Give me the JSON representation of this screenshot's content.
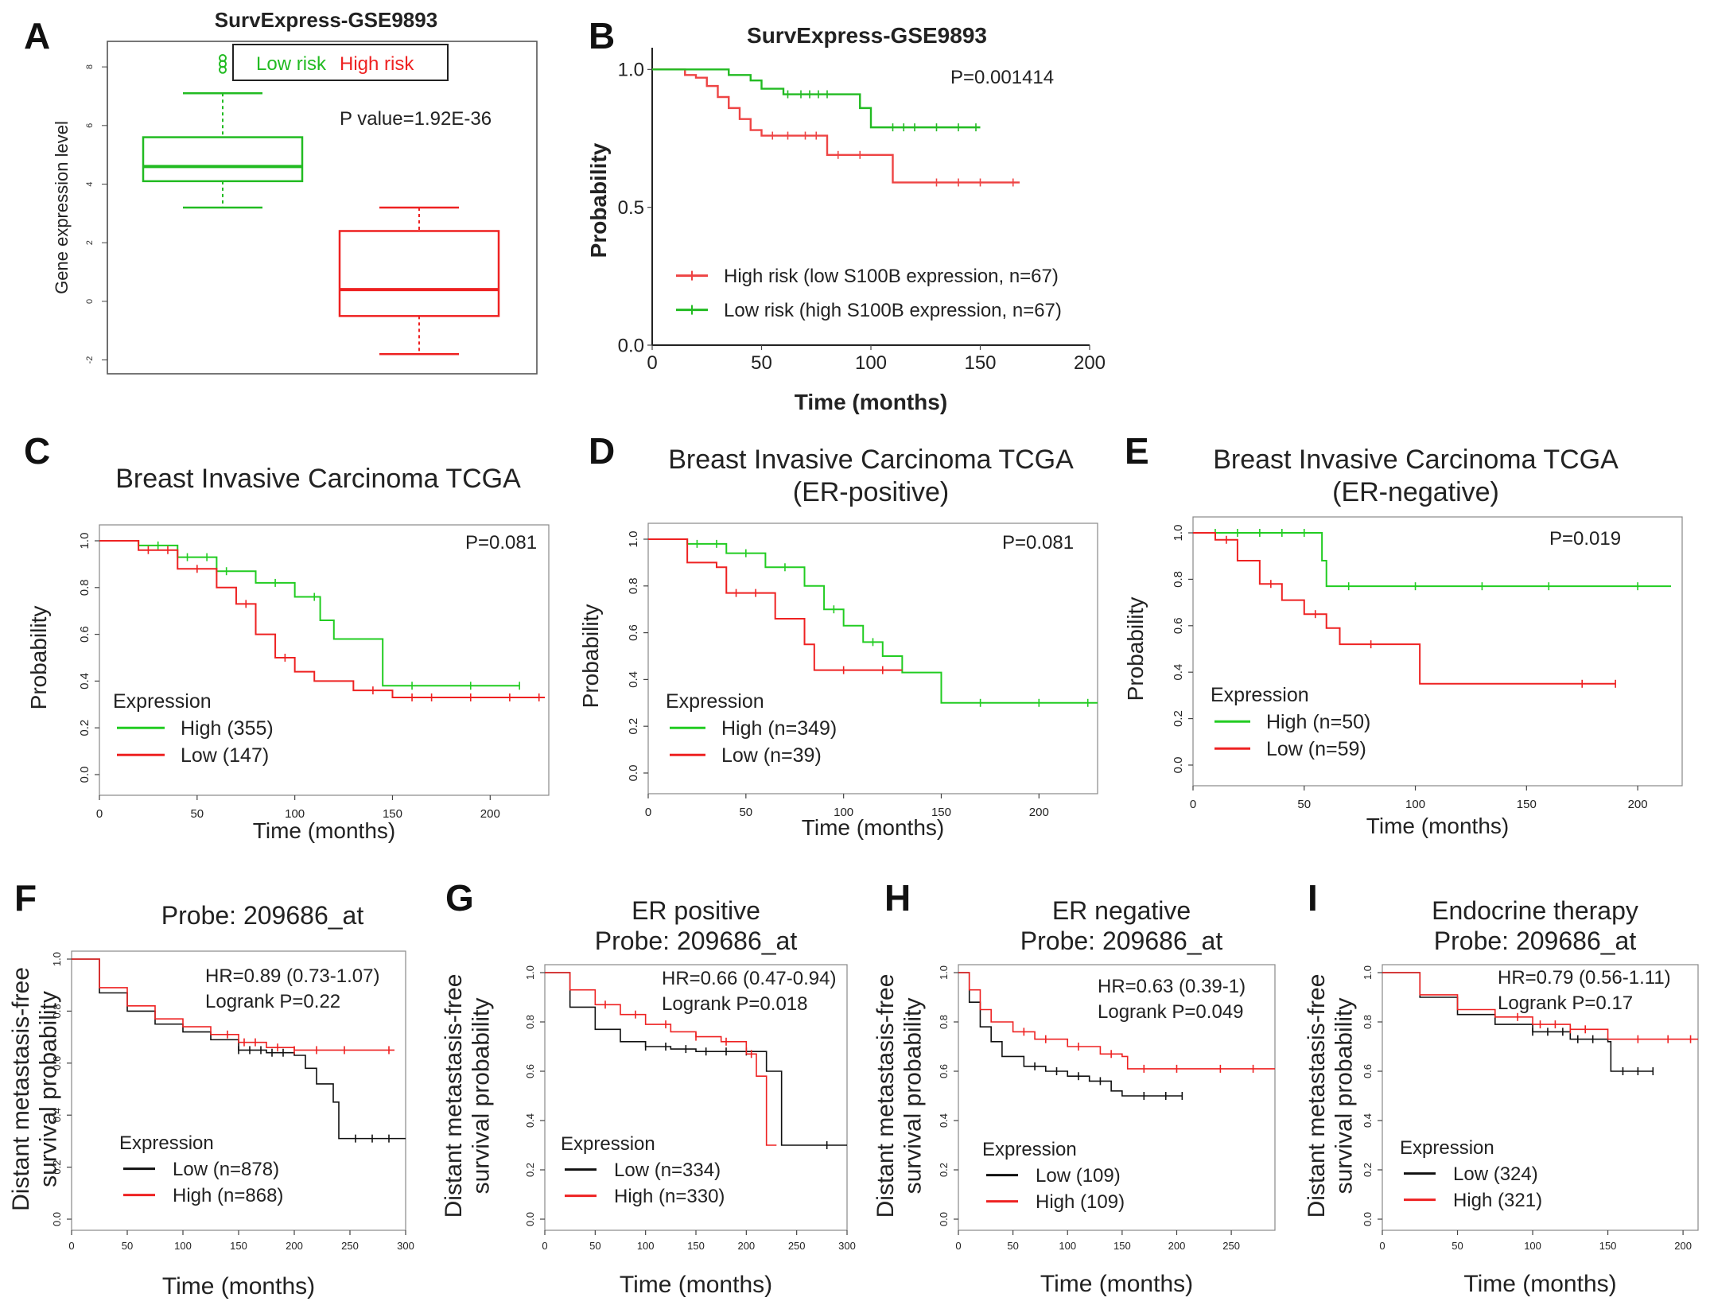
{
  "chart_data": [
    {
      "id": "A",
      "type": "box",
      "panel_label": "A",
      "title": "SurvExpress-GSE9893",
      "ylabel": "Gene expression level",
      "xlabel": "",
      "ylim": [
        -2.2,
        8.6
      ],
      "yticks": [
        "-2",
        "0",
        "2",
        "4",
        "6",
        "8"
      ],
      "ytick_values": [
        -2,
        0,
        2,
        4,
        6,
        8
      ],
      "legend": [
        {
          "name": "Low risk",
          "color": "#22bb22"
        },
        {
          "name": "High risk",
          "color": "#ee2222"
        }
      ],
      "annotation": "P value=1.92E-36",
      "boxes": [
        {
          "name": "Low risk",
          "color": "#22bb22",
          "whisker_low": 3.2,
          "q1": 4.1,
          "median": 4.6,
          "q3": 5.6,
          "whisker_high": 7.1,
          "outliers": [
            7.9,
            8.1,
            8.3
          ]
        },
        {
          "name": "High risk",
          "color": "#ee2222",
          "whisker_low": -1.8,
          "q1": -0.5,
          "median": 0.4,
          "q3": 2.4,
          "whisker_high": 3.2,
          "outliers": []
        }
      ]
    },
    {
      "id": "B",
      "type": "line",
      "panel_label": "B",
      "title": "SurvExpress-GSE9893",
      "xlabel": "Time (months)",
      "ylabel": "Probability",
      "xlim": [
        0,
        200
      ],
      "ylim": [
        0,
        1.05
      ],
      "xticks": [
        "0",
        "50",
        "100",
        "150",
        "200"
      ],
      "xtick_values": [
        0,
        50,
        100,
        150,
        200
      ],
      "yticks": [
        "0.0",
        "0.5",
        "1.0"
      ],
      "ytick_values": [
        0,
        0.5,
        1.0
      ],
      "annotation": "P=0.001414",
      "legend_title": "",
      "series": [
        {
          "name": "High risk (low S100B expression, n=67)",
          "color": "#ee4444",
          "x": [
            0,
            10,
            15,
            20,
            25,
            30,
            35,
            40,
            45,
            50,
            60,
            70,
            80,
            100,
            110,
            168
          ],
          "y": [
            1.0,
            1.0,
            0.98,
            0.97,
            0.94,
            0.9,
            0.86,
            0.82,
            0.78,
            0.76,
            0.76,
            0.76,
            0.69,
            0.69,
            0.59,
            0.59
          ],
          "censor_x": [
            55,
            62,
            70,
            75,
            85,
            95,
            130,
            140,
            150,
            165
          ]
        },
        {
          "name": "Low risk (high S100B expression, n=67)",
          "color": "#22bb22",
          "x": [
            0,
            30,
            35,
            45,
            50,
            60,
            70,
            95,
            100,
            150
          ],
          "y": [
            1.0,
            1.0,
            0.98,
            0.96,
            0.93,
            0.91,
            0.91,
            0.86,
            0.79,
            0.79
          ],
          "censor_x": [
            62,
            68,
            72,
            76,
            80,
            110,
            115,
            120,
            130,
            140,
            148
          ]
        }
      ]
    },
    {
      "id": "C",
      "type": "line",
      "panel_label": "C",
      "title": "Breast Invasive Carcinoma TCGA",
      "xlabel": "Time (months)",
      "ylabel": "Probability",
      "xlim": [
        0,
        230
      ],
      "ylim": [
        0,
        1.0
      ],
      "xticks": [
        "0",
        "50",
        "100",
        "150",
        "200"
      ],
      "xtick_values": [
        0,
        50,
        100,
        150,
        200
      ],
      "yticks": [
        "0.0",
        "0.2",
        "0.4",
        "0.6",
        "0.8",
        "1.0"
      ],
      "ytick_values": [
        0,
        0.2,
        0.4,
        0.6,
        0.8,
        1.0
      ],
      "annotation": "P=0.081",
      "legend_title": "Expression",
      "series": [
        {
          "name": "High (355)",
          "color": "#22cc22",
          "x": [
            0,
            20,
            40,
            60,
            80,
            100,
            113,
            120,
            140,
            145,
            215
          ],
          "y": [
            1.0,
            0.98,
            0.93,
            0.87,
            0.82,
            0.76,
            0.66,
            0.58,
            0.58,
            0.38,
            0.38
          ],
          "censor_x": [
            30,
            45,
            55,
            65,
            90,
            110,
            160,
            190,
            215
          ]
        },
        {
          "name": "Low (147)",
          "color": "#ee2222",
          "x": [
            0,
            20,
            40,
            60,
            70,
            80,
            90,
            100,
            110,
            130,
            150,
            228
          ],
          "y": [
            1.0,
            0.96,
            0.88,
            0.8,
            0.73,
            0.6,
            0.5,
            0.44,
            0.4,
            0.36,
            0.33,
            0.33
          ],
          "censor_x": [
            25,
            35,
            50,
            75,
            95,
            140,
            160,
            170,
            190,
            210,
            225
          ]
        }
      ]
    },
    {
      "id": "D",
      "type": "line",
      "panel_label": "D",
      "title": "Breast Invasive Carcinoma TCGA\n(ER-positive)",
      "xlabel": "Time (months)",
      "ylabel": "Probability",
      "xlim": [
        0,
        230
      ],
      "ylim": [
        0,
        1.0
      ],
      "xticks": [
        "0",
        "50",
        "100",
        "150",
        "200"
      ],
      "xtick_values": [
        0,
        50,
        100,
        150,
        200
      ],
      "yticks": [
        "0.0",
        "0.2",
        "0.4",
        "0.6",
        "0.8",
        "1.0"
      ],
      "ytick_values": [
        0,
        0.2,
        0.4,
        0.6,
        0.8,
        1.0
      ],
      "annotation": "P=0.081",
      "legend_title": "Expression",
      "series": [
        {
          "name": "High (n=349)",
          "color": "#22cc22",
          "x": [
            0,
            20,
            40,
            60,
            80,
            90,
            100,
            110,
            120,
            130,
            150,
            230
          ],
          "y": [
            1.0,
            0.98,
            0.94,
            0.88,
            0.8,
            0.7,
            0.63,
            0.56,
            0.5,
            0.43,
            0.3,
            0.3
          ],
          "censor_x": [
            25,
            35,
            50,
            70,
            95,
            115,
            170,
            200,
            225
          ]
        },
        {
          "name": "Low (n=39)",
          "color": "#ee2222",
          "x": [
            0,
            20,
            35,
            40,
            65,
            80,
            85,
            130
          ],
          "y": [
            1.0,
            0.9,
            0.88,
            0.77,
            0.66,
            0.55,
            0.44,
            0.44
          ],
          "censor_x": [
            45,
            55,
            100,
            120
          ]
        }
      ]
    },
    {
      "id": "E",
      "type": "line",
      "panel_label": "E",
      "title": "Breast Invasive Carcinoma TCGA\n(ER-negative)",
      "xlabel": "Time (months)",
      "ylabel": "Probability",
      "xlim": [
        0,
        220
      ],
      "ylim": [
        0,
        1.0
      ],
      "xticks": [
        "0",
        "50",
        "100",
        "150",
        "200"
      ],
      "xtick_values": [
        0,
        50,
        100,
        150,
        200
      ],
      "yticks": [
        "0.0",
        "0.2",
        "0.4",
        "0.6",
        "0.8",
        "1.0"
      ],
      "ytick_values": [
        0,
        0.2,
        0.4,
        0.6,
        0.8,
        1.0
      ],
      "annotation": "P=0.019",
      "legend_title": "Expression",
      "series": [
        {
          "name": "High (n=50)",
          "color": "#22cc22",
          "x": [
            0,
            55,
            58,
            60,
            215
          ],
          "y": [
            1.0,
            1.0,
            0.88,
            0.77,
            0.77
          ],
          "censor_x": [
            10,
            20,
            30,
            40,
            50,
            70,
            100,
            130,
            160,
            200
          ]
        },
        {
          "name": "Low (n=59)",
          "color": "#ee2222",
          "x": [
            0,
            10,
            20,
            30,
            40,
            50,
            60,
            66,
            100,
            102,
            190
          ],
          "y": [
            1.0,
            0.97,
            0.88,
            0.78,
            0.71,
            0.65,
            0.59,
            0.52,
            0.52,
            0.35,
            0.35
          ],
          "censor_x": [
            15,
            35,
            55,
            80,
            175,
            190
          ]
        }
      ]
    },
    {
      "id": "F",
      "type": "line",
      "panel_label": "F",
      "title": "Probe: 209686_at",
      "xlabel": "Time (months)",
      "ylabel": "Distant metastasis-free\nsurvival probability",
      "xlim": [
        0,
        300
      ],
      "ylim": [
        0,
        1.0
      ],
      "xticks": [
        "0",
        "50",
        "100",
        "150",
        "200",
        "250",
        "300"
      ],
      "xtick_values": [
        0,
        50,
        100,
        150,
        200,
        250,
        300
      ],
      "yticks": [
        "0.0",
        "0.2",
        "0.4",
        "0.6",
        "0.8",
        "1.0"
      ],
      "ytick_values": [
        0,
        0.2,
        0.4,
        0.6,
        0.8,
        1.0
      ],
      "annotation": "HR=0.89 (0.73-1.07)\nLogrank  P=0.22",
      "legend_title": "Expression",
      "series": [
        {
          "name": "Low (n=878)",
          "color": "#111111",
          "x": [
            0,
            25,
            50,
            75,
            100,
            125,
            150,
            175,
            200,
            210,
            220,
            235,
            240,
            300
          ],
          "y": [
            1.0,
            0.87,
            0.8,
            0.75,
            0.72,
            0.69,
            0.65,
            0.64,
            0.63,
            0.58,
            0.52,
            0.45,
            0.31,
            0.31
          ],
          "censor_x": [
            150,
            160,
            170,
            180,
            190,
            255,
            270,
            285
          ]
        },
        {
          "name": "High (n=868)",
          "color": "#ee2222",
          "x": [
            0,
            25,
            50,
            75,
            100,
            125,
            150,
            175,
            200,
            230,
            290
          ],
          "y": [
            1.0,
            0.89,
            0.82,
            0.77,
            0.74,
            0.71,
            0.68,
            0.66,
            0.65,
            0.65,
            0.65
          ],
          "censor_x": [
            140,
            155,
            165,
            185,
            200,
            220,
            245,
            285
          ]
        }
      ]
    },
    {
      "id": "G",
      "type": "line",
      "panel_label": "G",
      "title": "ER positive\nProbe: 209686_at",
      "xlabel": "Time (months)",
      "ylabel": "Distant metastasis-free\nsurvival probability",
      "xlim": [
        0,
        300
      ],
      "ylim": [
        0,
        1.0
      ],
      "xticks": [
        "0",
        "50",
        "100",
        "150",
        "200",
        "250",
        "300"
      ],
      "xtick_values": [
        0,
        50,
        100,
        150,
        200,
        250,
        300
      ],
      "yticks": [
        "0.0",
        "0.2",
        "0.4",
        "0.6",
        "0.8",
        "1.0"
      ],
      "ytick_values": [
        0,
        0.2,
        0.4,
        0.6,
        0.8,
        1.0
      ],
      "annotation": "HR=0.66 (0.47-0.94)\nLogrank  P=0.018",
      "legend_title": "Expression",
      "series": [
        {
          "name": "Low (n=334)",
          "color": "#111111",
          "x": [
            0,
            25,
            50,
            75,
            100,
            125,
            150,
            175,
            200,
            220,
            235,
            240,
            300
          ],
          "y": [
            1.0,
            0.86,
            0.77,
            0.72,
            0.7,
            0.69,
            0.68,
            0.68,
            0.68,
            0.6,
            0.3,
            0.3,
            0.3
          ],
          "censor_x": [
            100,
            120,
            140,
            160,
            180,
            200,
            280
          ]
        },
        {
          "name": "High (n=330)",
          "color": "#ee2222",
          "x": [
            0,
            25,
            50,
            75,
            100,
            125,
            150,
            175,
            200,
            210,
            220,
            230
          ],
          "y": [
            1.0,
            0.93,
            0.87,
            0.83,
            0.79,
            0.76,
            0.74,
            0.72,
            0.67,
            0.58,
            0.3,
            0.3
          ],
          "censor_x": [
            60,
            90,
            120,
            150,
            180,
            205
          ]
        }
      ]
    },
    {
      "id": "H",
      "type": "line",
      "panel_label": "H",
      "title": "ER negative\nProbe: 209686_at",
      "xlabel": "Time (months)",
      "ylabel": "Distant metastasis-free\nsurvival probability",
      "xlim": [
        0,
        290
      ],
      "ylim": [
        0,
        1.0
      ],
      "xticks": [
        "0",
        "50",
        "100",
        "150",
        "200",
        "250"
      ],
      "xtick_values": [
        0,
        50,
        100,
        150,
        200,
        250
      ],
      "yticks": [
        "0.0",
        "0.2",
        "0.4",
        "0.6",
        "0.8",
        "1.0"
      ],
      "ytick_values": [
        0,
        0.2,
        0.4,
        0.6,
        0.8,
        1.0
      ],
      "annotation": "HR=0.63 (0.39-1)\nLogrank  P=0.049",
      "legend_title": "Expression",
      "series": [
        {
          "name": "Low (109)",
          "color": "#111111",
          "x": [
            0,
            10,
            20,
            30,
            40,
            60,
            80,
            100,
            120,
            140,
            150,
            160,
            205
          ],
          "y": [
            1.0,
            0.88,
            0.78,
            0.72,
            0.66,
            0.62,
            0.6,
            0.58,
            0.56,
            0.52,
            0.5,
            0.5,
            0.5
          ],
          "censor_x": [
            70,
            90,
            110,
            130,
            170,
            190,
            205
          ]
        },
        {
          "name": "High (109)",
          "color": "#ee2222",
          "x": [
            0,
            10,
            20,
            30,
            50,
            70,
            100,
            130,
            150,
            155,
            290
          ],
          "y": [
            1.0,
            0.93,
            0.85,
            0.8,
            0.76,
            0.73,
            0.7,
            0.67,
            0.66,
            0.61,
            0.61
          ],
          "censor_x": [
            60,
            80,
            110,
            140,
            170,
            200,
            240,
            270
          ]
        }
      ]
    },
    {
      "id": "I",
      "type": "line",
      "panel_label": "I",
      "title": "Endocrine therapy\nProbe: 209686_at",
      "xlabel": "Time (months)",
      "ylabel": "Distant metastasis-free\nsurvival probability",
      "xlim": [
        0,
        210
      ],
      "ylim": [
        0,
        1.0
      ],
      "xticks": [
        "0",
        "50",
        "100",
        "150",
        "200"
      ],
      "xtick_values": [
        0,
        50,
        100,
        150,
        200
      ],
      "yticks": [
        "0.0",
        "0.2",
        "0.4",
        "0.6",
        "0.8",
        "1.0"
      ],
      "ytick_values": [
        0,
        0.2,
        0.4,
        0.6,
        0.8,
        1.0
      ],
      "annotation": "HR=0.79 (0.56-1.11)\nLogrank  P=0.17",
      "legend_title": "Expression",
      "series": [
        {
          "name": "Low (324)",
          "color": "#111111",
          "x": [
            0,
            25,
            50,
            75,
            100,
            125,
            150,
            152,
            180
          ],
          "y": [
            1.0,
            0.9,
            0.83,
            0.79,
            0.76,
            0.73,
            0.72,
            0.6,
            0.6
          ],
          "censor_x": [
            100,
            110,
            120,
            130,
            140,
            160,
            170,
            180
          ]
        },
        {
          "name": "High (321)",
          "color": "#ee2222",
          "x": [
            0,
            25,
            50,
            75,
            100,
            125,
            150,
            210
          ],
          "y": [
            1.0,
            0.91,
            0.85,
            0.82,
            0.79,
            0.77,
            0.73,
            0.73
          ],
          "censor_x": [
            90,
            105,
            115,
            125,
            135,
            170,
            190,
            205
          ]
        }
      ]
    }
  ]
}
